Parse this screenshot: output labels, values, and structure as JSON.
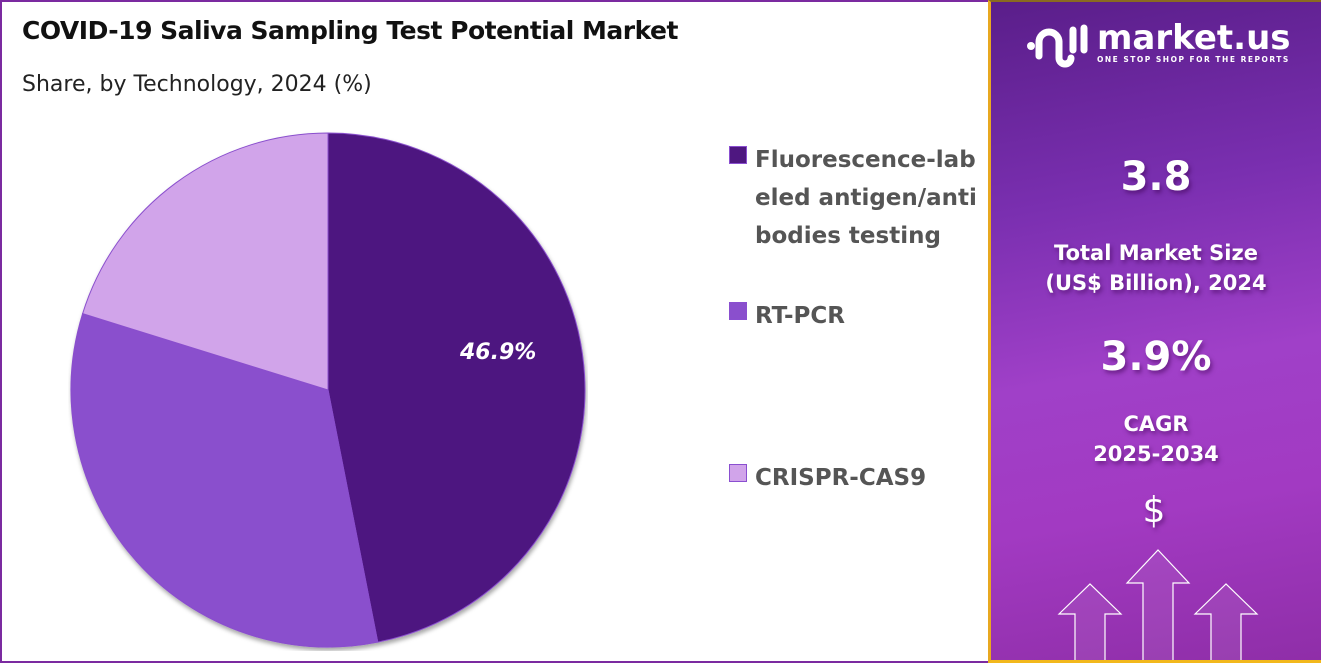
{
  "header": {
    "title": "COVID-19 Saliva Sampling Test Potential Market",
    "subtitle": "Share, by Technology, 2024 (%)"
  },
  "chart_data": {
    "type": "pie",
    "title": "COVID-19 Saliva Sampling Test Potential Market",
    "subtitle": "Share, by Technology, 2024 (%)",
    "categories": [
      "Fluorescence-labeled antigen/antibodies testing",
      "RT-PCR",
      "CRISPR-CAS9"
    ],
    "values": [
      46.9,
      32.9,
      20.2
    ],
    "colors": [
      "#4e1780",
      "#8a4fcd",
      "#d1a4ea"
    ],
    "data_labels": [
      "46.9%",
      "",
      ""
    ],
    "start_angle": "12 o'clock, clockwise",
    "legend_position": "right"
  },
  "legend": {
    "items": [
      {
        "label": "Fluorescence-labeled antigen/antibodies testing",
        "color": "#4e1780"
      },
      {
        "label": "RT-PCR",
        "color": "#8a4fcd"
      },
      {
        "label": "CRISPR-CAS9",
        "color": "#d1a4ea"
      }
    ]
  },
  "pie": {
    "label_main": "46.9%"
  },
  "sidebar": {
    "brand_name": "market.us",
    "brand_tagline": "ONE STOP SHOP FOR THE REPORTS",
    "market_size_value": "3.8",
    "market_size_label_1": "Total Market Size",
    "market_size_label_2": "(US$ Billion), 2024",
    "cagr_value": "3.9%",
    "cagr_label_1": "CAGR",
    "cagr_label_2": "2025-2034",
    "currency_symbol": "$"
  }
}
